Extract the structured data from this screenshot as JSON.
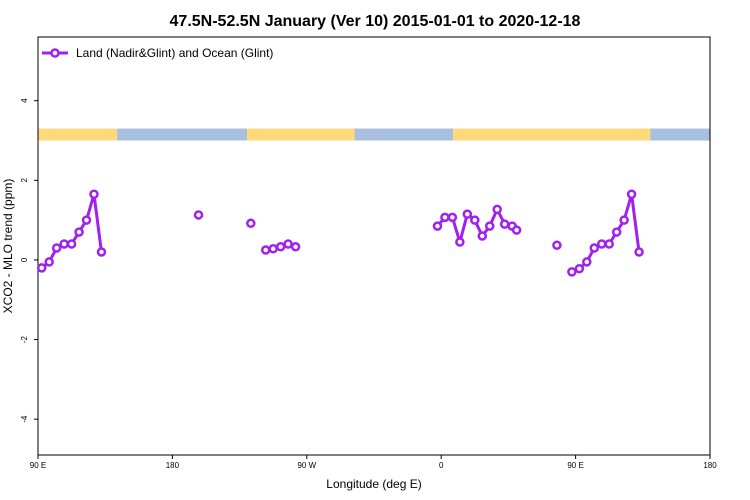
{
  "chart_data": {
    "type": "line",
    "title": "47.5N-52.5N January (Ver 10)   2015-01-01 to 2020-12-18",
    "xlabel": "Longitude (deg E)",
    "ylabel": "XCO2 - MLO trend (ppm)",
    "xlim": [
      90,
      540
    ],
    "ylim": [
      -4.9,
      5.6
    ],
    "x_ticks": [
      {
        "value": 90,
        "label": "90 E"
      },
      {
        "value": 180,
        "label": "180"
      },
      {
        "value": 270,
        "label": "90 W"
      },
      {
        "value": 360,
        "label": "0"
      },
      {
        "value": 450,
        "label": "90 E"
      },
      {
        "value": 540,
        "label": "180"
      }
    ],
    "y_ticks": [
      {
        "value": -4,
        "label": "-4"
      },
      {
        "value": -2,
        "label": "-2"
      },
      {
        "value": 0,
        "label": "0"
      },
      {
        "value": 2,
        "label": "2"
      },
      {
        "value": 4,
        "label": "4"
      }
    ],
    "grid": false,
    "legend_position": "top-left",
    "series": [
      {
        "name": "Land (Nadir&Glint) and Ocean (Glint)",
        "color": "#a020f0",
        "segments": [
          [
            [
              92.5,
              -0.2
            ],
            [
              97.5,
              -0.05
            ],
            [
              102.5,
              0.3
            ],
            [
              107.5,
              0.4
            ],
            [
              112.5,
              0.4
            ],
            [
              117.5,
              0.7
            ],
            [
              122.5,
              1.0
            ],
            [
              127.5,
              1.65
            ],
            [
              132.5,
              0.2
            ]
          ],
          [
            [
              197.5,
              1.13
            ]
          ],
          [
            [
              232.5,
              0.92
            ]
          ],
          [
            [
              242.5,
              0.25
            ],
            [
              247.5,
              0.28
            ],
            [
              252.5,
              0.33
            ],
            [
              257.5,
              0.4
            ],
            [
              262.5,
              0.33
            ]
          ],
          [
            [
              357.5,
              0.85
            ],
            [
              362.5,
              1.07
            ],
            [
              367.5,
              1.07
            ],
            [
              372.5,
              0.45
            ],
            [
              377.5,
              1.15
            ],
            [
              382.5,
              1.0
            ],
            [
              387.5,
              0.6
            ],
            [
              392.5,
              0.85
            ],
            [
              397.5,
              1.27
            ],
            [
              402.5,
              0.9
            ],
            [
              407.5,
              0.85
            ],
            [
              410.5,
              0.75
            ]
          ],
          [
            [
              437.5,
              0.37
            ]
          ],
          [
            [
              447.5,
              -0.3
            ],
            [
              452.5,
              -0.22
            ],
            [
              457.5,
              -0.05
            ],
            [
              462.5,
              0.3
            ],
            [
              467.5,
              0.4
            ],
            [
              472.5,
              0.4
            ],
            [
              477.5,
              0.7
            ],
            [
              482.5,
              1.0
            ],
            [
              487.5,
              1.65
            ],
            [
              492.5,
              0.2
            ]
          ]
        ]
      }
    ],
    "surface_band": {
      "y_range": [
        3.0,
        3.3
      ],
      "colors": {
        "land": "#ffd97a",
        "ocean": "#a8bfdd"
      },
      "regions": [
        {
          "type": "land",
          "x0": 90,
          "x1": 143
        },
        {
          "type": "ocean",
          "x0": 143,
          "x1": 230
        },
        {
          "type": "land",
          "x0": 230,
          "x1": 302
        },
        {
          "type": "ocean",
          "x0": 302,
          "x1": 368
        },
        {
          "type": "land",
          "x0": 368,
          "x1": 500
        },
        {
          "type": "ocean",
          "x0": 500,
          "x1": 540
        }
      ]
    }
  }
}
